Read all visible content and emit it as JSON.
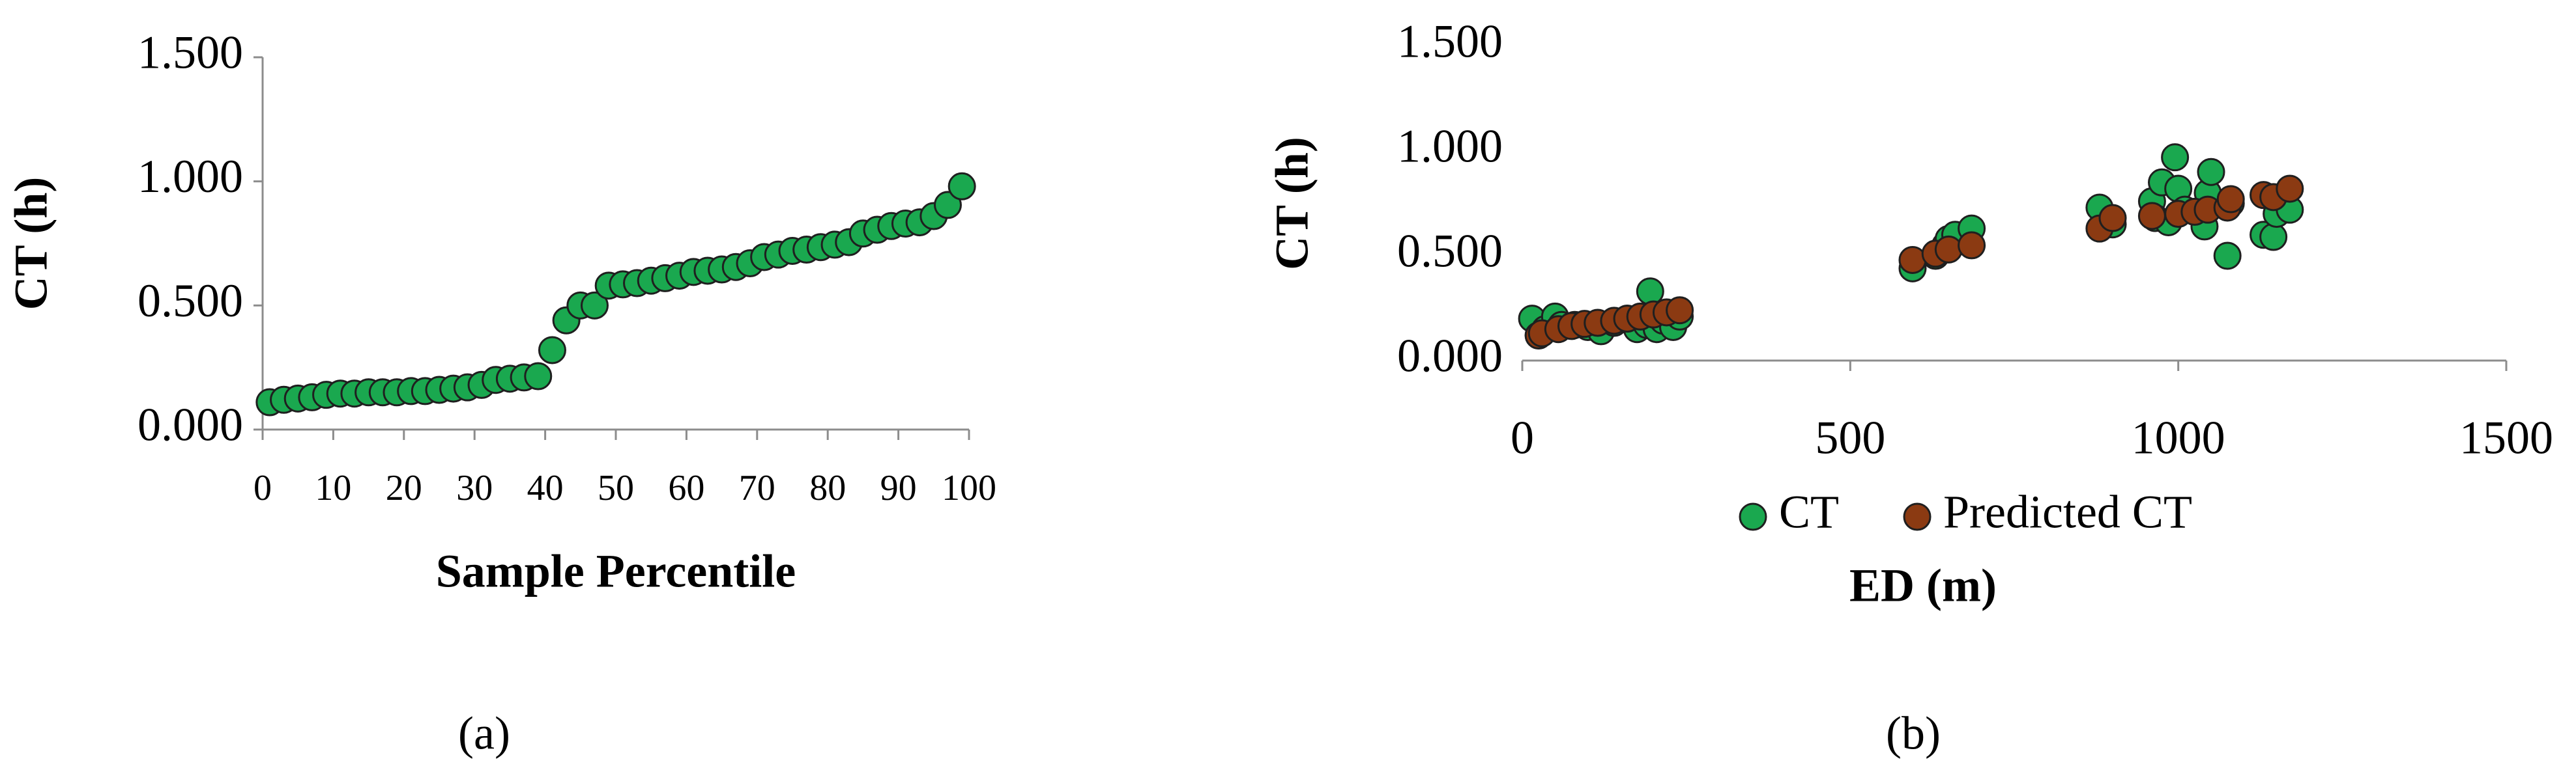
{
  "chart_data": [
    {
      "type": "scatter",
      "x_label": "Sample Percentile",
      "y_label": "CT (h)",
      "caption": "(a)",
      "color": "#1aa84f",
      "x": [
        1,
        3,
        5,
        7,
        9,
        11,
        13,
        15,
        17,
        19,
        21,
        23,
        25,
        27,
        29,
        31,
        33,
        35,
        37,
        39,
        41,
        43,
        45,
        47,
        49,
        51,
        53,
        55,
        57,
        59,
        61,
        63,
        65,
        67,
        69,
        71,
        73,
        75,
        77,
        79,
        81,
        83,
        85,
        87,
        89,
        91,
        93,
        95,
        97,
        99
      ],
      "values": [
        0.11,
        0.12,
        0.125,
        0.13,
        0.14,
        0.145,
        0.145,
        0.15,
        0.15,
        0.15,
        0.155,
        0.155,
        0.16,
        0.165,
        0.17,
        0.18,
        0.2,
        0.205,
        0.21,
        0.215,
        0.32,
        0.44,
        0.5,
        0.5,
        0.58,
        0.585,
        0.59,
        0.6,
        0.61,
        0.62,
        0.635,
        0.64,
        0.645,
        0.655,
        0.67,
        0.695,
        0.705,
        0.72,
        0.725,
        0.735,
        0.745,
        0.755,
        0.79,
        0.805,
        0.82,
        0.83,
        0.835,
        0.86,
        0.905,
        0.98
      ],
      "xlim": [
        0,
        100
      ],
      "xticks": [
        0,
        10,
        20,
        30,
        40,
        50,
        60,
        70,
        80,
        90,
        100
      ],
      "ylim": [
        0,
        1.5
      ],
      "yticks": [
        {
          "value": 0,
          "label": "0.000"
        },
        {
          "value": 0.5,
          "label": "0.500"
        },
        {
          "value": 1,
          "label": "1.000"
        },
        {
          "value": 1.5,
          "label": "1.500"
        }
      ],
      "y_axis_line": true
    },
    {
      "type": "scatter",
      "x_label": "ED (m)",
      "y_label": "CT (h)",
      "caption": "(b)",
      "legend": "bottom",
      "series": [
        {
          "name": "CT",
          "color": "#1aa84f",
          "x": [
            15,
            25,
            35,
            50,
            60,
            80,
            100,
            120,
            140,
            160,
            175,
            190,
            195,
            205,
            215,
            230,
            240,
            595,
            630,
            645,
            650,
            660,
            685,
            880,
            900,
            960,
            965,
            975,
            985,
            995,
            1000,
            1010,
            1040,
            1045,
            1050,
            1075,
            1080,
            1130,
            1145,
            1150,
            1170
          ],
          "values": [
            0.2,
            0.12,
            0.15,
            0.21,
            0.17,
            0.17,
            0.16,
            0.14,
            0.18,
            0.2,
            0.15,
            0.17,
            0.33,
            0.15,
            0.19,
            0.16,
            0.21,
            0.44,
            0.5,
            0.55,
            0.58,
            0.6,
            0.63,
            0.73,
            0.65,
            0.76,
            0.68,
            0.85,
            0.66,
            0.97,
            0.82,
            0.72,
            0.64,
            0.8,
            0.9,
            0.5,
            0.75,
            0.6,
            0.59,
            0.7,
            0.72
          ]
        },
        {
          "name": "Predicted CT",
          "color": "#8b3a12",
          "x": [
            25,
            30,
            55,
            75,
            95,
            115,
            140,
            160,
            180,
            200,
            220,
            240,
            595,
            630,
            650,
            685,
            880,
            900,
            960,
            1000,
            1025,
            1045,
            1075,
            1080,
            1130,
            1145,
            1170
          ],
          "values": [
            0.12,
            0.13,
            0.15,
            0.165,
            0.175,
            0.18,
            0.19,
            0.2,
            0.21,
            0.22,
            0.23,
            0.24,
            0.48,
            0.51,
            0.53,
            0.55,
            0.63,
            0.68,
            0.69,
            0.7,
            0.71,
            0.72,
            0.73,
            0.77,
            0.79,
            0.78,
            0.82
          ]
        }
      ],
      "xlim": [
        0,
        1500
      ],
      "xticks": [
        0,
        500,
        1000,
        1500
      ],
      "ylim": [
        0,
        1.5
      ],
      "yticks": [
        {
          "value": 0,
          "label": "0.000"
        },
        {
          "value": 0.5,
          "label": "0.500"
        },
        {
          "value": 1,
          "label": "1.000"
        },
        {
          "value": 1.5,
          "label": "1.500"
        }
      ],
      "y_axis_line": false
    }
  ]
}
